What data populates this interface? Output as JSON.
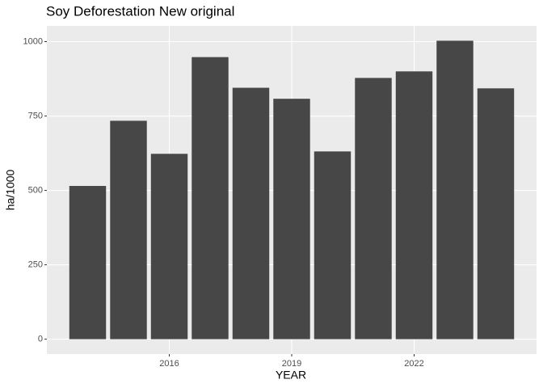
{
  "chart_data": {
    "type": "bar",
    "title": "Soy Deforestation New original",
    "x_label": "YEAR",
    "y_label": "ha/1000",
    "x": [
      2014,
      2015,
      2016,
      2017,
      2018,
      2019,
      2020,
      2021,
      2022,
      2023,
      2024
    ],
    "values": [
      515,
      734,
      623,
      948,
      845,
      808,
      631,
      878,
      900,
      1003,
      843
    ],
    "color": "#474747",
    "xlim": [
      2013,
      2025
    ],
    "xticks": [
      2016,
      2019,
      2022
    ],
    "ylim": [
      -50,
      1053
    ],
    "yticks": [
      0,
      250,
      500,
      750,
      1000
    ],
    "grid": true
  }
}
